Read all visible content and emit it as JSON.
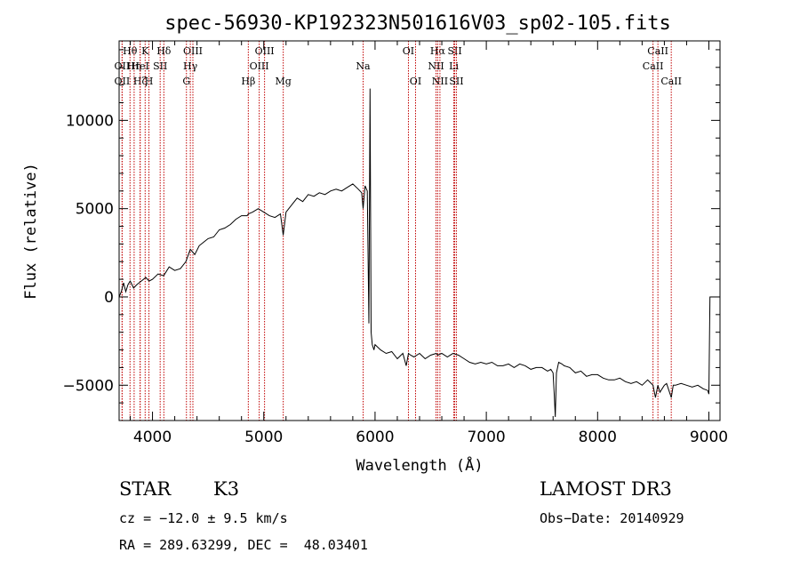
{
  "chart_data": {
    "type": "line",
    "title": "spec-56930-KP192323N501616V03_sp02-105.fits",
    "xlabel": "Wavelength (Å)",
    "ylabel": "Flux (relative)",
    "xlim": [
      3700,
      9100
    ],
    "ylim": [
      -7000,
      14500
    ],
    "x_ticks": [
      4000,
      5000,
      6000,
      7000,
      8000,
      9000
    ],
    "y_ticks": [
      -5000,
      0,
      5000,
      10000
    ],
    "spectrum": {
      "x": [
        3700,
        3720,
        3740,
        3760,
        3780,
        3800,
        3830,
        3860,
        3900,
        3940,
        3970,
        4000,
        4050,
        4100,
        4150,
        4200,
        4250,
        4300,
        4340,
        4380,
        4420,
        4460,
        4500,
        4550,
        4600,
        4650,
        4700,
        4750,
        4800,
        4850,
        4861,
        4900,
        4950,
        5000,
        5050,
        5100,
        5150,
        5175,
        5200,
        5250,
        5300,
        5350,
        5400,
        5450,
        5500,
        5550,
        5600,
        5650,
        5700,
        5750,
        5800,
        5850,
        5880,
        5893,
        5910,
        5930,
        5945,
        5955,
        5965,
        5975,
        5990,
        6000,
        6050,
        6100,
        6150,
        6200,
        6250,
        6280,
        6300,
        6320,
        6350,
        6400,
        6450,
        6500,
        6550,
        6563,
        6600,
        6650,
        6700,
        6750,
        6800,
        6850,
        6900,
        6950,
        7000,
        7050,
        7100,
        7150,
        7200,
        7250,
        7300,
        7350,
        7400,
        7450,
        7500,
        7550,
        7580,
        7600,
        7610,
        7620,
        7630,
        7650,
        7680,
        7700,
        7750,
        7800,
        7850,
        7900,
        7950,
        8000,
        8050,
        8100,
        8150,
        8200,
        8250,
        8300,
        8350,
        8400,
        8450,
        8498,
        8520,
        8542,
        8560,
        8600,
        8620,
        8662,
        8680,
        8700,
        8750,
        8800,
        8850,
        8900,
        8950,
        8990,
        9000,
        9010,
        9100
      ],
      "y": [
        0,
        300,
        800,
        300,
        700,
        900,
        500,
        700,
        900,
        1100,
        900,
        1000,
        1300,
        1200,
        1700,
        1500,
        1600,
        2000,
        2700,
        2400,
        2900,
        3100,
        3300,
        3400,
        3800,
        3900,
        4100,
        4400,
        4600,
        4600,
        4700,
        4800,
        5000,
        4800,
        4600,
        4500,
        4700,
        3500,
        4800,
        5200,
        5600,
        5400,
        5800,
        5700,
        5900,
        5800,
        6000,
        6100,
        6000,
        6200,
        6400,
        6100,
        5900,
        5000,
        6300,
        6000,
        -1500,
        11800,
        -2000,
        -2700,
        -3000,
        -2700,
        -3000,
        -3200,
        -3100,
        -3500,
        -3200,
        -3900,
        -3200,
        -3300,
        -3400,
        -3200,
        -3500,
        -3300,
        -3200,
        -3300,
        -3200,
        -3400,
        -3200,
        -3300,
        -3500,
        -3700,
        -3800,
        -3700,
        -3800,
        -3700,
        -3900,
        -3900,
        -3800,
        -4000,
        -3800,
        -3900,
        -4100,
        -4000,
        -4000,
        -4200,
        -4100,
        -4300,
        -5500,
        -6800,
        -4300,
        -3700,
        -3800,
        -3900,
        -4000,
        -4300,
        -4200,
        -4500,
        -4400,
        -4400,
        -4600,
        -4700,
        -4700,
        -4600,
        -4800,
        -4900,
        -4800,
        -5000,
        -4700,
        -5000,
        -5700,
        -5000,
        -5400,
        -5000,
        -4900,
        -5700,
        -5000,
        -5000,
        -4900,
        -5000,
        -5100,
        -5000,
        -5200,
        -5300,
        -5500,
        0,
        0
      ]
    },
    "spectral_lines": [
      {
        "name": "Hθ",
        "wavelength": 3798,
        "row": 1
      },
      {
        "name": "OII",
        "wavelength": 3727,
        "row": 2
      },
      {
        "name": "Hη",
        "wavelength": 3835,
        "row": 2
      },
      {
        "name": "OII",
        "wavelength": 3727,
        "row": 3
      },
      {
        "name": "Hζ",
        "wavelength": 3889,
        "row": 3
      },
      {
        "name": "K",
        "wavelength": 3934,
        "row": 1
      },
      {
        "name": "H",
        "wavelength": 3968,
        "row": 3
      },
      {
        "name": "HeI",
        "wavelength": 3889,
        "row": 2
      },
      {
        "name": "SII",
        "wavelength": 4069,
        "row": 2
      },
      {
        "name": "Hδ",
        "wavelength": 4102,
        "row": 1
      },
      {
        "name": "OIII",
        "wavelength": 4363,
        "row": 1
      },
      {
        "name": "Hγ",
        "wavelength": 4340,
        "row": 2
      },
      {
        "name": "G",
        "wavelength": 4305,
        "row": 3
      },
      {
        "name": "Hβ",
        "wavelength": 4861,
        "row": 3
      },
      {
        "name": "OIII",
        "wavelength": 5007,
        "row": 1
      },
      {
        "name": "OIII",
        "wavelength": 4959,
        "row": 2
      },
      {
        "name": "Mg",
        "wavelength": 5175,
        "row": 3
      },
      {
        "name": "Na",
        "wavelength": 5893,
        "row": 2
      },
      {
        "name": "OI",
        "wavelength": 6300,
        "row": 1
      },
      {
        "name": "OI",
        "wavelength": 6364,
        "row": 3
      },
      {
        "name": "Hα",
        "wavelength": 6563,
        "row": 1
      },
      {
        "name": "NII",
        "wavelength": 6548,
        "row": 2
      },
      {
        "name": "NII",
        "wavelength": 6583,
        "row": 3
      },
      {
        "name": "SII",
        "wavelength": 6716,
        "row": 1
      },
      {
        "name": "Li",
        "wavelength": 6708,
        "row": 2
      },
      {
        "name": "SII",
        "wavelength": 6731,
        "row": 3
      },
      {
        "name": "CaII",
        "wavelength": 8542,
        "row": 1
      },
      {
        "name": "CaII",
        "wavelength": 8498,
        "row": 2
      },
      {
        "name": "CaII",
        "wavelength": 8662,
        "row": 3
      }
    ]
  },
  "info": {
    "class_text": "STAR",
    "subclass_text": "K3",
    "survey": "LAMOST DR3",
    "cz_line": "cz = −12.0 ± 9.5 km/s",
    "obs_date_line": "Obs−Date: 20140929",
    "radec_line": "RA = 289.63299, DEC =  48.03401"
  }
}
